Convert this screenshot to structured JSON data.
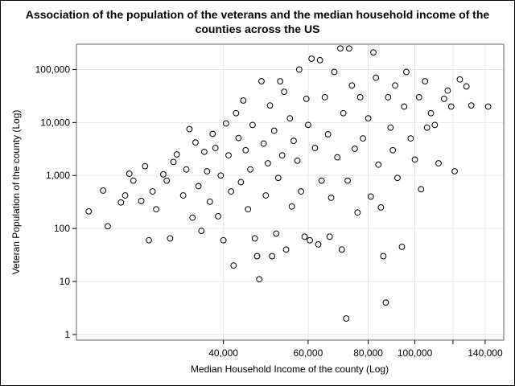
{
  "chart_data": {
    "type": "scatter",
    "title_line1": "Association of the population of the veterans and the median household income of the",
    "title_line2": "counties across the US",
    "xlabel": "Median Household Income of the county (Log)",
    "ylabel": "Veteran Population of the county (Log)",
    "x_scale": "log",
    "y_scale": "log",
    "xlim": [
      19800,
      153000
    ],
    "ylim": [
      0.78,
      300000
    ],
    "x_ticks": [
      {
        "value": 40000,
        "label": "40,000"
      },
      {
        "value": 60000,
        "label": "60,000"
      },
      {
        "value": 80000,
        "label": "80,000"
      },
      {
        "value": 100000,
        "label": "100,000"
      },
      {
        "value": 120000,
        "label": ""
      },
      {
        "value": 140000,
        "label": "140,000"
      }
    ],
    "y_ticks": [
      {
        "value": 1,
        "label": "1"
      },
      {
        "value": 10,
        "label": "10"
      },
      {
        "value": 100,
        "label": "100"
      },
      {
        "value": 1000,
        "label": "1,000"
      },
      {
        "value": 10000,
        "label": "10,000"
      },
      {
        "value": 100000,
        "label": "100,000"
      }
    ],
    "grid": true,
    "marker": "open-circle",
    "marker_color": "#000000",
    "series": [
      {
        "points": [
          [
            21000,
            210
          ],
          [
            22500,
            520
          ],
          [
            23000,
            110
          ],
          [
            24500,
            310
          ],
          [
            25000,
            420
          ],
          [
            25500,
            1080
          ],
          [
            26000,
            800
          ],
          [
            27000,
            330
          ],
          [
            27500,
            1500
          ],
          [
            28000,
            60
          ],
          [
            28500,
            500
          ],
          [
            29000,
            230
          ],
          [
            30000,
            1050
          ],
          [
            30500,
            800
          ],
          [
            31000,
            65
          ],
          [
            31500,
            1800
          ],
          [
            32000,
            2500
          ],
          [
            33000,
            420
          ],
          [
            33500,
            1300
          ],
          [
            34000,
            7500
          ],
          [
            34500,
            160
          ],
          [
            35000,
            4200
          ],
          [
            35500,
            630
          ],
          [
            36000,
            90
          ],
          [
            36500,
            2800
          ],
          [
            37000,
            1200
          ],
          [
            37500,
            320
          ],
          [
            38000,
            6100
          ],
          [
            38500,
            3300
          ],
          [
            39000,
            170
          ],
          [
            39500,
            1000
          ],
          [
            40000,
            60
          ],
          [
            40500,
            9600
          ],
          [
            41000,
            2400
          ],
          [
            41500,
            500
          ],
          [
            42000,
            20
          ],
          [
            42500,
            15000
          ],
          [
            43000,
            5100
          ],
          [
            43500,
            750
          ],
          [
            44000,
            26000
          ],
          [
            44500,
            3000
          ],
          [
            45000,
            230
          ],
          [
            45500,
            1300
          ],
          [
            46000,
            9000
          ],
          [
            46500,
            65
          ],
          [
            47000,
            30
          ],
          [
            47500,
            11
          ],
          [
            48000,
            60000
          ],
          [
            48500,
            4000
          ],
          [
            49000,
            420
          ],
          [
            49500,
            1700
          ],
          [
            50000,
            21000
          ],
          [
            50500,
            30
          ],
          [
            51000,
            7000
          ],
          [
            51500,
            80
          ],
          [
            52000,
            900
          ],
          [
            52500,
            60000
          ],
          [
            53000,
            2400
          ],
          [
            53500,
            38000
          ],
          [
            54000,
            40
          ],
          [
            55000,
            12000
          ],
          [
            55500,
            260
          ],
          [
            56000,
            4500
          ],
          [
            57000,
            1900
          ],
          [
            57500,
            100000
          ],
          [
            58000,
            500
          ],
          [
            59000,
            70
          ],
          [
            59500,
            28000
          ],
          [
            60000,
            9000
          ],
          [
            60500,
            60
          ],
          [
            61000,
            160000
          ],
          [
            62000,
            3300
          ],
          [
            63000,
            50
          ],
          [
            63500,
            150000
          ],
          [
            64000,
            800
          ],
          [
            65000,
            30000
          ],
          [
            66000,
            6000
          ],
          [
            66500,
            70
          ],
          [
            67000,
            380
          ],
          [
            68000,
            90000
          ],
          [
            69000,
            2200
          ],
          [
            70000,
            250000
          ],
          [
            70500,
            40
          ],
          [
            71000,
            15000
          ],
          [
            72000,
            2
          ],
          [
            72500,
            800
          ],
          [
            73000,
            250000
          ],
          [
            74000,
            50000
          ],
          [
            75000,
            3200
          ],
          [
            76000,
            200
          ],
          [
            77000,
            30000
          ],
          [
            78000,
            5000
          ],
          [
            80000,
            12000
          ],
          [
            81000,
            400
          ],
          [
            82000,
            210000
          ],
          [
            83000,
            70000
          ],
          [
            84000,
            1600
          ],
          [
            85000,
            250
          ],
          [
            86000,
            30
          ],
          [
            87000,
            4
          ],
          [
            88000,
            30000
          ],
          [
            89000,
            8000
          ],
          [
            90000,
            3000
          ],
          [
            91000,
            50000
          ],
          [
            92000,
            900
          ],
          [
            94000,
            45
          ],
          [
            95000,
            20000
          ],
          [
            96000,
            90000
          ],
          [
            98000,
            5000
          ],
          [
            100000,
            2000
          ],
          [
            102000,
            30000
          ],
          [
            103000,
            550
          ],
          [
            105000,
            60000
          ],
          [
            106000,
            8000
          ],
          [
            108000,
            15000
          ],
          [
            110000,
            9000
          ],
          [
            112000,
            1700
          ],
          [
            115000,
            28000
          ],
          [
            117000,
            40000
          ],
          [
            119000,
            20000
          ],
          [
            121000,
            1200
          ],
          [
            124000,
            65000
          ],
          [
            128000,
            48000
          ],
          [
            131000,
            21000
          ],
          [
            142000,
            20000
          ]
        ]
      }
    ]
  }
}
